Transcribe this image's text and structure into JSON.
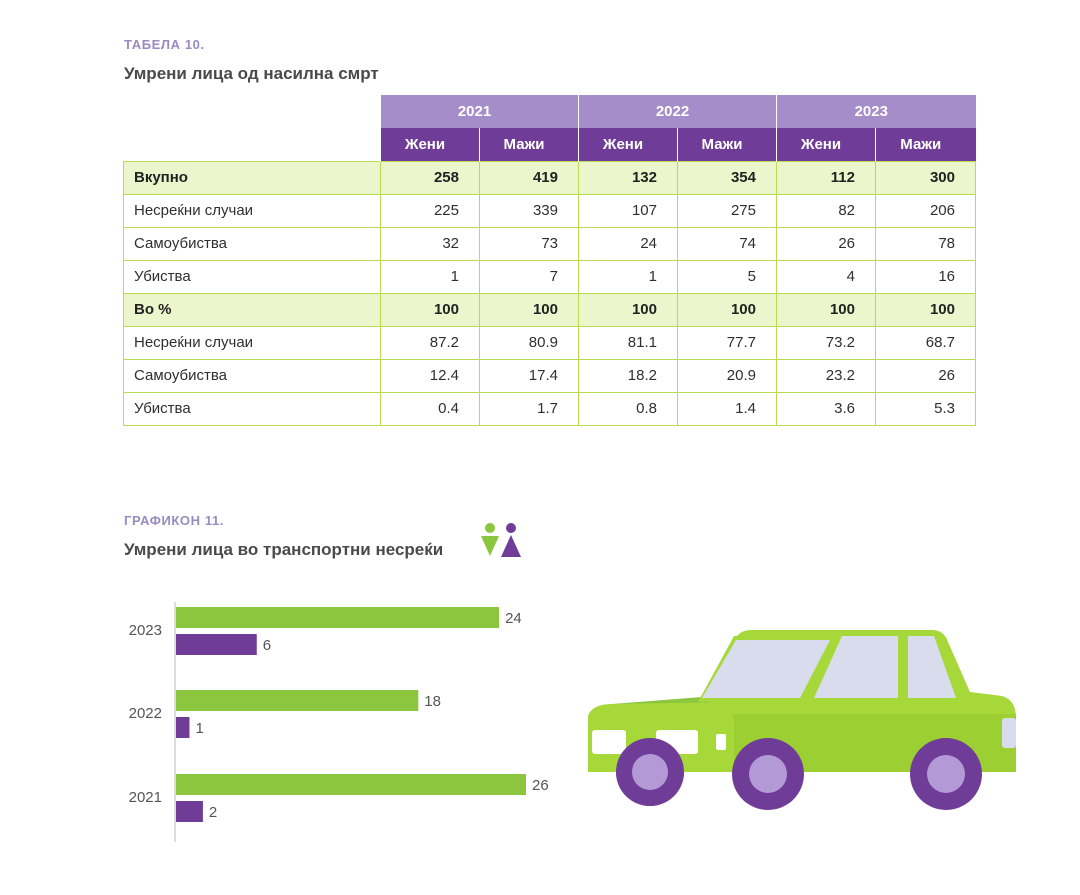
{
  "table": {
    "caption": "ТАБЕЛА 10.",
    "title": "Умрени лица од насилна смрт",
    "years": [
      "2021",
      "2022",
      "2023"
    ],
    "sexes": [
      "Жени",
      "Мажи"
    ],
    "rows": [
      {
        "label": "Вкупно",
        "total": true,
        "values": [
          "258",
          "419",
          "132",
          "354",
          "112",
          "300"
        ]
      },
      {
        "label": "Несреќни случаи",
        "total": false,
        "values": [
          "225",
          "339",
          "107",
          "275",
          "82",
          "206"
        ]
      },
      {
        "label": "Самоубиства",
        "total": false,
        "values": [
          "32",
          "73",
          "24",
          "74",
          "26",
          "78"
        ]
      },
      {
        "label": "Убиства",
        "total": false,
        "values": [
          "1",
          "7",
          "1",
          "5",
          "4",
          "16"
        ]
      },
      {
        "label": "Во %",
        "total": true,
        "values": [
          "100",
          "100",
          "100",
          "100",
          "100",
          "100"
        ]
      },
      {
        "label": "Несреќни случаи",
        "total": false,
        "values": [
          "87.2",
          "80.9",
          "81.1",
          "77.7",
          "73.2",
          "68.7"
        ]
      },
      {
        "label": "Самоубиства",
        "total": false,
        "values": [
          "12.4",
          "17.4",
          "18.2",
          "20.9",
          "23.2",
          "26"
        ]
      },
      {
        "label": "Убиства",
        "total": false,
        "values": [
          "0.4",
          "1.7",
          "0.8",
          "1.4",
          "3.6",
          "5.3"
        ]
      }
    ]
  },
  "graph": {
    "caption": "ГРАФИКОН 11.",
    "title": "Умрени лица во транспортни несреќи"
  },
  "colors": {
    "green": "#8cc63f",
    "purple": "#6f3d98",
    "lavender": "#a48dc9"
  },
  "chart_data": {
    "type": "bar",
    "orientation": "horizontal",
    "title": "Умрени лица во транспортни несреќи",
    "categories": [
      "2023",
      "2022",
      "2021"
    ],
    "series": [
      {
        "name": "green",
        "color": "#8cc63f",
        "values": [
          24,
          18,
          26
        ]
      },
      {
        "name": "purple",
        "color": "#6f3d98",
        "values": [
          6,
          1,
          2
        ]
      }
    ],
    "xlim": [
      0,
      26
    ]
  }
}
